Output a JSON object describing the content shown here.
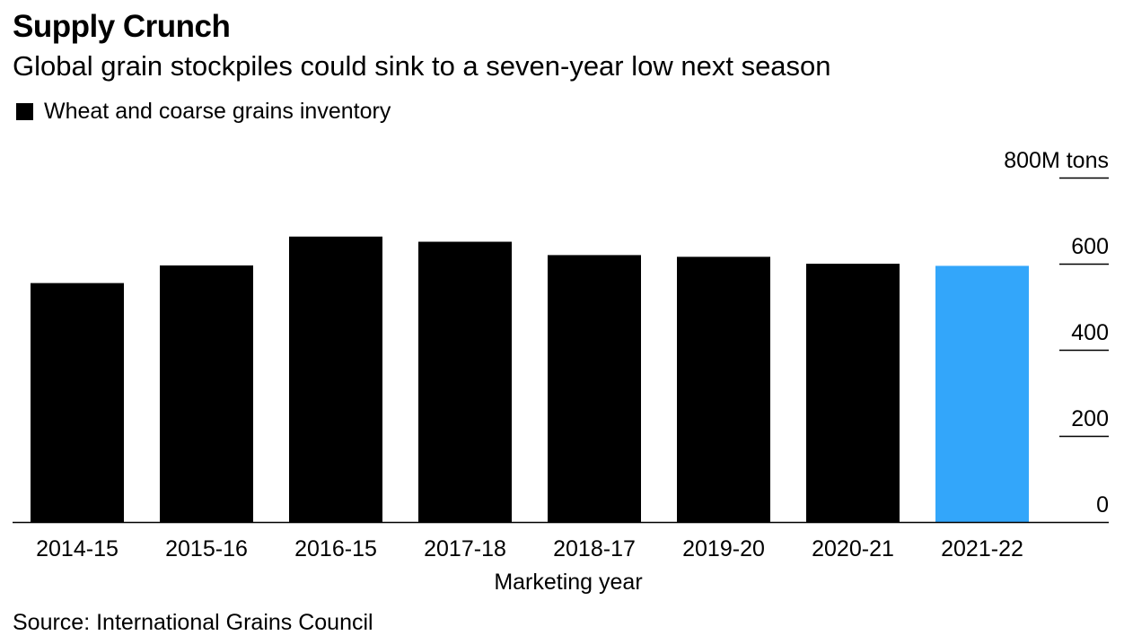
{
  "header": {
    "title": "Supply Crunch",
    "subtitle": "Global grain stockpiles could sink to a seven-year low next season"
  },
  "source": "Source: International Grains Council",
  "colors": {
    "bar": "#000000",
    "highlight": "#33a6fa",
    "axis": "#000000"
  },
  "chart_data": {
    "type": "bar",
    "categories": [
      "2014-15",
      "2015-16",
      "2016-15",
      "2017-18",
      "2018-17",
      "2019-20",
      "2020-21",
      "2021-22"
    ],
    "series": [
      {
        "name": "Wheat and coarse grains inventory",
        "values": [
          555,
          596,
          663,
          651,
          620,
          616,
          600,
          595
        ]
      }
    ],
    "highlight_index": 7,
    "xlabel": "Marketing year",
    "ylabel": "",
    "ylim": [
      0,
      800
    ],
    "y_ticks": [
      0,
      200,
      400,
      600,
      800
    ],
    "y_tick_labels": [
      "0",
      "200",
      "400",
      "600",
      "800M tons"
    ],
    "y_axis_position": "right",
    "grid": false,
    "legend_position": "top-left"
  }
}
